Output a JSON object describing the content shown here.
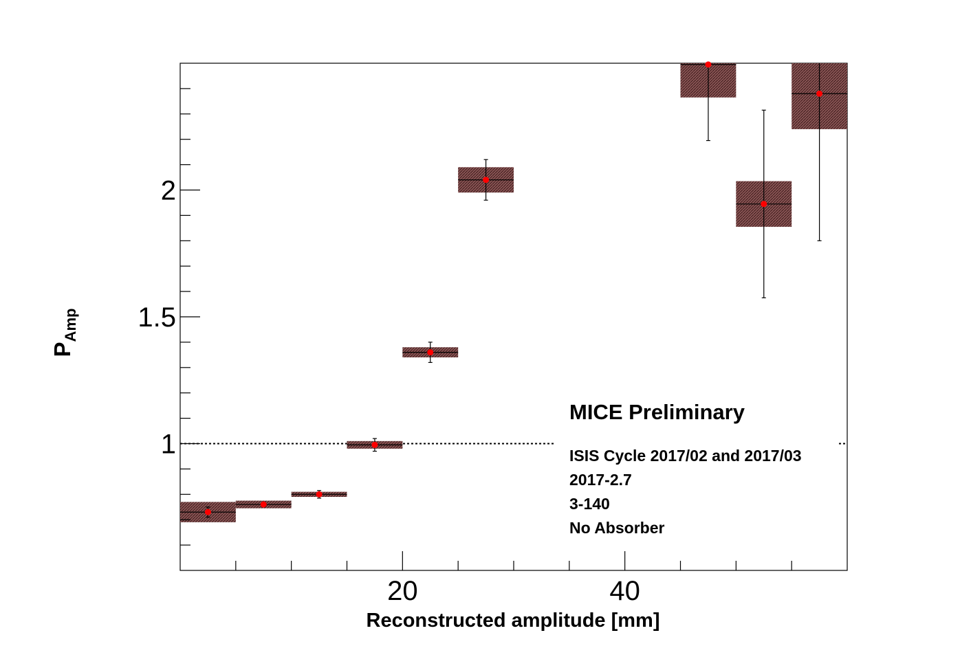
{
  "chart_data": {
    "type": "scatter",
    "title": "",
    "xlabel": "Reconstructed amplitude [mm]",
    "ylabel_main": "P",
    "ylabel_sub": "Amp",
    "xlim": [
      0,
      60
    ],
    "ylim": [
      0.5,
      2.5
    ],
    "x_ticks": [
      20,
      40
    ],
    "y_ticks": [
      1,
      1.5,
      2
    ],
    "x_tick_labels": [
      "20",
      "40"
    ],
    "y_tick_labels": [
      "1",
      "1.5",
      "2"
    ],
    "grid": false,
    "reference_line": 1,
    "bin_width": 5,
    "points": [
      {
        "x": 2.5,
        "y": 0.73,
        "err": 0.02,
        "sys": 0.04
      },
      {
        "x": 7.5,
        "y": 0.76,
        "err": 0.01,
        "sys": 0.015
      },
      {
        "x": 12.5,
        "y": 0.8,
        "err": 0.015,
        "sys": 0.01
      },
      {
        "x": 17.5,
        "y": 0.995,
        "err": 0.025,
        "sys": 0.015
      },
      {
        "x": 22.5,
        "y": 1.36,
        "err": 0.04,
        "sys": 0.02
      },
      {
        "x": 27.5,
        "y": 2.04,
        "err": 0.08,
        "sys": 0.05
      },
      {
        "x": 47.5,
        "y": 2.495,
        "err": 0.3,
        "sys": 0.13
      },
      {
        "x": 52.5,
        "y": 1.945,
        "err": 0.37,
        "sys": 0.09
      },
      {
        "x": 57.5,
        "y": 2.38,
        "err": 0.58,
        "sys": 0.14
      }
    ],
    "marker_color": "#ff0000",
    "box_color": "#7a4a4a",
    "annotation": {
      "title": "MICE Preliminary",
      "lines": [
        "ISIS Cycle 2017/02 and 2017/03",
        "2017-2.7",
        "3-140",
        "No Absorber"
      ]
    }
  }
}
